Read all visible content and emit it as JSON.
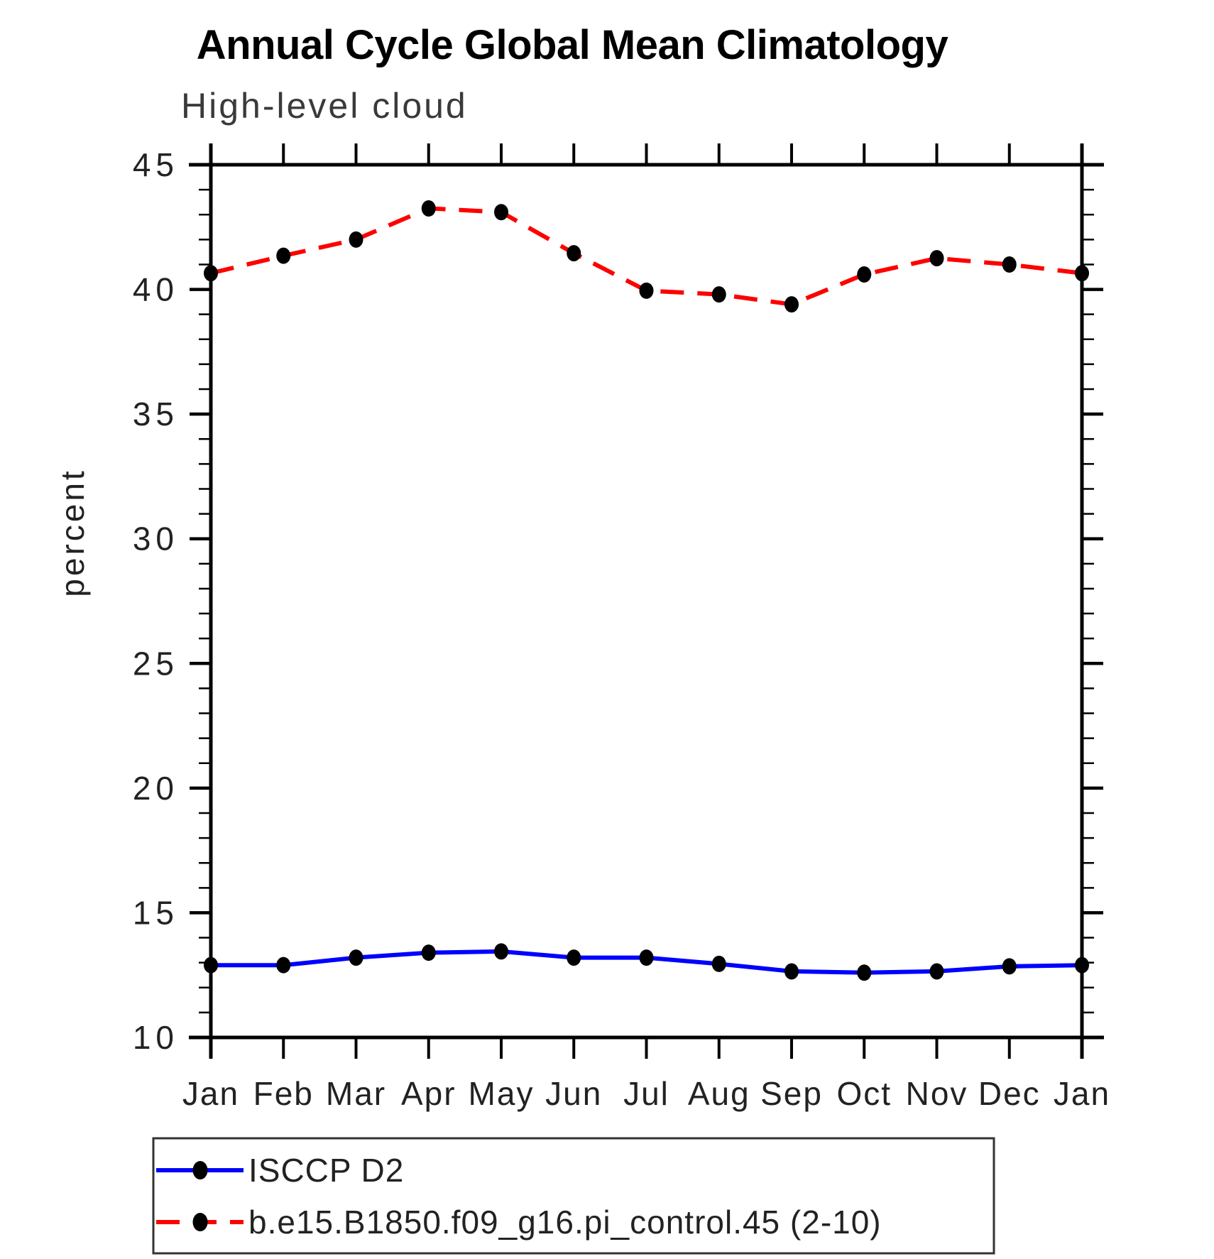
{
  "chart_data": {
    "type": "line",
    "title": "Annual Cycle Global Mean Climatology",
    "subtitle": "High-level cloud",
    "ylabel": "percent",
    "ylim": [
      10,
      45
    ],
    "y_major_ticks": [
      10,
      15,
      20,
      25,
      30,
      35,
      40,
      45
    ],
    "y_minor_tick_interval": 1,
    "grid": false,
    "categories": [
      "Jan",
      "Feb",
      "Mar",
      "Apr",
      "May",
      "Jun",
      "Jul",
      "Aug",
      "Sep",
      "Oct",
      "Nov",
      "Dec",
      "Jan"
    ],
    "series": [
      {
        "name": "ISCCP D2",
        "color": "#0000ff",
        "line_style": "solid",
        "marker": "filled-circle",
        "marker_color": "#000000",
        "values": [
          12.9,
          12.9,
          13.2,
          13.4,
          13.45,
          13.2,
          13.2,
          12.95,
          12.65,
          12.6,
          12.65,
          12.85,
          12.9
        ]
      },
      {
        "name": "b.e15.B1850.f09_g16.pi_control.45 (2-10)",
        "color": "#ff0000",
        "line_style": "dashed",
        "marker": "filled-circle",
        "marker_color": "#000000",
        "values": [
          40.65,
          41.35,
          42.0,
          43.25,
          43.1,
          41.45,
          39.95,
          39.8,
          39.4,
          40.6,
          41.25,
          41.0,
          40.65
        ]
      }
    ],
    "legend_position": "bottom-left-box"
  }
}
